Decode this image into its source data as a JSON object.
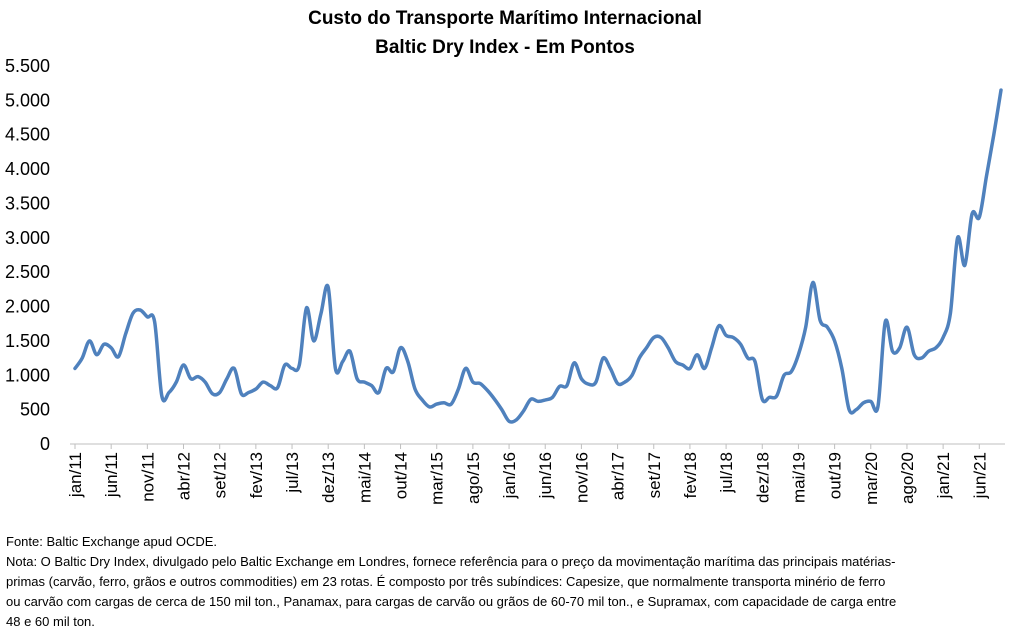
{
  "chart_data": {
    "type": "line",
    "title": "Custo do Transporte Marítimo Internacional",
    "subtitle": "Baltic Dry Index - Em Pontos",
    "xlabel": "",
    "ylabel": "",
    "ylim": [
      0,
      5500
    ],
    "yticks": [
      0,
      500,
      1000,
      1500,
      2000,
      2500,
      3000,
      3500,
      4000,
      4500,
      5000,
      5500
    ],
    "ytick_labels": [
      "0",
      "500",
      "1.000",
      "1.500",
      "2.000",
      "2.500",
      "3.000",
      "3.500",
      "4.000",
      "4.500",
      "5.000",
      "5.500"
    ],
    "xtick_labels": [
      "jan/11",
      "jun/11",
      "nov/11",
      "abr/12",
      "set/12",
      "fev/13",
      "jul/13",
      "dez/13",
      "mai/14",
      "out/14",
      "mar/15",
      "ago/15",
      "jan/16",
      "jun/16",
      "nov/16",
      "abr/17",
      "set/17",
      "fev/18",
      "jul/18",
      "dez/18",
      "mai/19",
      "out/19",
      "mar/20",
      "ago/20",
      "jan/21",
      "jun/21"
    ],
    "grid": false,
    "line_color": "#4f81bd",
    "x": [
      "jan/11",
      "fev/11",
      "mar/11",
      "abr/11",
      "mai/11",
      "jun/11",
      "jul/11",
      "ago/11",
      "set/11",
      "out/11",
      "nov/11",
      "dez/11",
      "jan/12",
      "fev/12",
      "mar/12",
      "abr/12",
      "mai/12",
      "jun/12",
      "jul/12",
      "ago/12",
      "set/12",
      "out/12",
      "nov/12",
      "dez/12",
      "jan/13",
      "fev/13",
      "mar/13",
      "abr/13",
      "mai/13",
      "jun/13",
      "jul/13",
      "ago/13",
      "set/13",
      "out/13",
      "nov/13",
      "dez/13",
      "jan/14",
      "fev/14",
      "mar/14",
      "abr/14",
      "mai/14",
      "jun/14",
      "jul/14",
      "ago/14",
      "set/14",
      "out/14",
      "nov/14",
      "dez/14",
      "jan/15",
      "fev/15",
      "mar/15",
      "abr/15",
      "mai/15",
      "jun/15",
      "jul/15",
      "ago/15",
      "set/15",
      "out/15",
      "nov/15",
      "dez/15",
      "jan/16",
      "fev/16",
      "mar/16",
      "abr/16",
      "mai/16",
      "jun/16",
      "jul/16",
      "ago/16",
      "set/16",
      "out/16",
      "nov/16",
      "dez/16",
      "jan/17",
      "fev/17",
      "mar/17",
      "abr/17",
      "mai/17",
      "jun/17",
      "jul/17",
      "ago/17",
      "set/17",
      "out/17",
      "nov/17",
      "dez/17",
      "jan/18",
      "fev/18",
      "mar/18",
      "abr/18",
      "mai/18",
      "jun/18",
      "jul/18",
      "ago/18",
      "set/18",
      "out/18",
      "nov/18",
      "dez/18",
      "jan/19",
      "fev/19",
      "mar/19",
      "abr/19",
      "mai/19",
      "jun/19",
      "jul/19",
      "ago/19",
      "set/19",
      "out/19",
      "nov/19",
      "dez/19",
      "jan/20",
      "fev/20",
      "mar/20",
      "abr/20",
      "mai/20",
      "jun/20",
      "jul/20",
      "ago/20",
      "set/20",
      "out/20",
      "nov/20",
      "dez/20",
      "jan/21",
      "fev/21",
      "mar/21",
      "abr/21",
      "mai/21",
      "jun/21",
      "jul/21",
      "ago/21",
      "set/21"
    ],
    "series": [
      {
        "values": [
          1100,
          1250,
          1500,
          1300,
          1450,
          1400,
          1270,
          1600,
          1900,
          1950,
          1850,
          1780,
          700,
          750,
          900,
          1150,
          950,
          980,
          900,
          730,
          750,
          950,
          1100,
          730,
          750,
          800,
          900,
          850,
          820,
          1150,
          1100,
          1150,
          1980,
          1500,
          1900,
          2280,
          1100,
          1200,
          1350,
          950,
          900,
          850,
          750,
          1100,
          1050,
          1400,
          1200,
          800,
          640,
          540,
          580,
          600,
          580,
          800,
          1100,
          900,
          880,
          780,
          650,
          500,
          330,
          350,
          480,
          650,
          620,
          640,
          680,
          840,
          850,
          1180,
          950,
          870,
          900,
          1250,
          1100,
          880,
          900,
          1000,
          1250,
          1400,
          1550,
          1550,
          1400,
          1200,
          1150,
          1100,
          1300,
          1100,
          1400,
          1720,
          1580,
          1550,
          1450,
          1250,
          1200,
          650,
          680,
          700,
          1000,
          1050,
          1300,
          1700,
          2350,
          1800,
          1700,
          1500,
          1100,
          500,
          500,
          600,
          620,
          550,
          1780,
          1350,
          1400,
          1700,
          1300,
          1250,
          1350,
          1400,
          1550,
          1900,
          3000,
          2600,
          3350,
          3300,
          3900,
          4500,
          5150
        ]
      }
    ]
  },
  "footer": {
    "source": "Fonte: Baltic Exchange apud OCDE.",
    "note_line1": "Nota: O Baltic Dry Index, divulgado pelo Baltic Exchange em Londres, fornece referência para o preço da movimentação marítima das principais matérias-",
    "note_line2": "primas (carvão, ferro, grãos e outros commodities) em 23 rotas. É composto por três subíndices: Capesize, que normalmente transporta minério de ferro",
    "note_line3": "ou carvão com cargas de cerca de 150 mil ton., Panamax, para cargas de carvão ou grãos de 60-70 mil ton., e Supramax, com capacidade de carga entre",
    "note_line4": "48 e 60 mil ton."
  }
}
